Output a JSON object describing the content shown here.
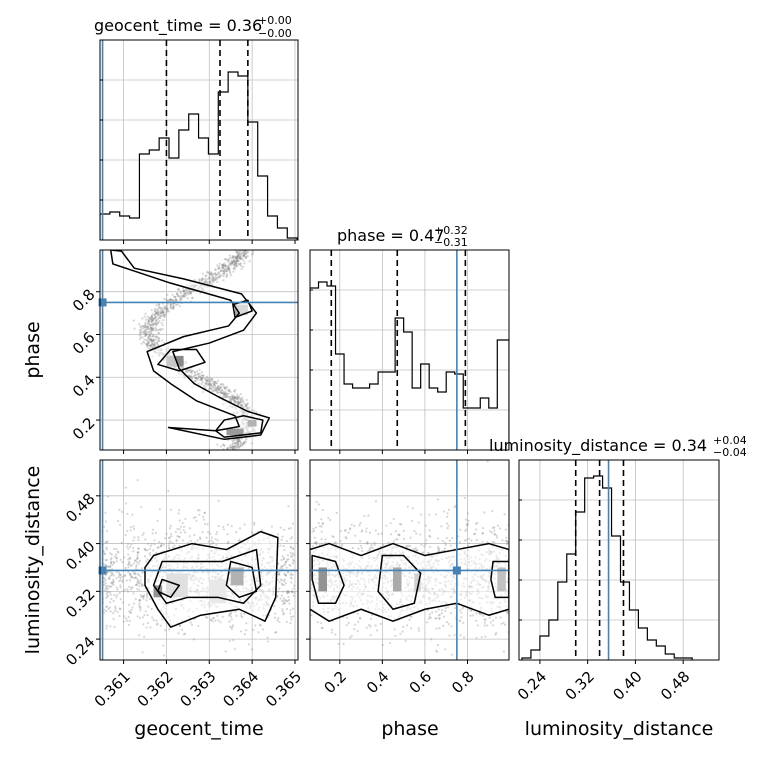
{
  "chart_data": {
    "type": "corner",
    "parameters": [
      "geocent_time",
      "phase",
      "luminosity_distance"
    ],
    "truth": {
      "geocent_time": 0.36051,
      "phase": 0.75,
      "luminosity_distance": 0.355
    },
    "colors": {
      "truth": "#4682b4",
      "hist": "#000000",
      "grid": "#c0c0c0",
      "samples": "#8a8a8a"
    },
    "titles": {
      "geocent_time": {
        "main": "geocent_time = 0.36",
        "plus": "+0.00",
        "minus": "−0.00"
      },
      "phase": {
        "main": "phase = 0.47",
        "plus": "+0.32",
        "minus": "−0.31"
      },
      "luminosity_distance": {
        "main": "luminosity_distance = 0.34",
        "plus": "+0.04",
        "minus": "−0.04"
      }
    },
    "ranges": {
      "geocent_time": [
        0.36045,
        0.36507
      ],
      "phase": [
        0.06,
        0.995
      ],
      "luminosity_distance": [
        0.205,
        0.54
      ]
    },
    "ticks": {
      "geocent_time": [
        {
          "v": 0.361,
          "label": "0.361"
        },
        {
          "v": 0.362,
          "label": "0.362"
        },
        {
          "v": 0.363,
          "label": "0.363"
        },
        {
          "v": 0.364,
          "label": "0.364"
        },
        {
          "v": 0.365,
          "label": "0.365"
        }
      ],
      "phase": [
        {
          "v": 0.2,
          "label": "0.2"
        },
        {
          "v": 0.4,
          "label": "0.4"
        },
        {
          "v": 0.6,
          "label": "0.6"
        },
        {
          "v": 0.8,
          "label": "0.8"
        }
      ],
      "luminosity_distance": [
        {
          "v": 0.24,
          "label": "0.24"
        },
        {
          "v": 0.32,
          "label": "0.32"
        },
        {
          "v": 0.4,
          "label": "0.40"
        },
        {
          "v": 0.48,
          "label": "0.48"
        }
      ]
    },
    "quantiles": {
      "geocent_time": [
        0.362,
        0.36325,
        0.3639
      ],
      "phase": [
        0.16,
        0.47,
        0.79
      ],
      "luminosity_distance": [
        0.3,
        0.34,
        0.38
      ]
    },
    "hist_geocent_time": {
      "edges": [
        0.36045,
        0.36068,
        0.36091,
        0.36114,
        0.36137,
        0.3616,
        0.36183,
        0.36206,
        0.36229,
        0.36252,
        0.36275,
        0.36298,
        0.36321,
        0.36344,
        0.36367,
        0.3639,
        0.36413,
        0.36436,
        0.36459,
        0.36482,
        0.36505
      ],
      "counts": [
        0.13,
        0.14,
        0.12,
        0.11,
        0.43,
        0.45,
        0.51,
        0.41,
        0.55,
        0.63,
        0.51,
        0.43,
        0.74,
        0.84,
        0.82,
        0.59,
        0.32,
        0.12,
        0.06,
        0.01
      ]
    },
    "hist_phase": {
      "edges": [
        0.06,
        0.1,
        0.14,
        0.18,
        0.22,
        0.26,
        0.3,
        0.34,
        0.38,
        0.42,
        0.46,
        0.5,
        0.54,
        0.58,
        0.62,
        0.66,
        0.7,
        0.74,
        0.78,
        0.82,
        0.86,
        0.9,
        0.94,
        0.995
      ],
      "counts": [
        0.81,
        0.84,
        0.82,
        0.48,
        0.33,
        0.31,
        0.31,
        0.33,
        0.39,
        0.39,
        0.66,
        0.59,
        0.31,
        0.43,
        0.31,
        0.29,
        0.39,
        0.38,
        0.21,
        0.21,
        0.26,
        0.21,
        0.55
      ]
    },
    "hist_luminosity_distance": {
      "edges": [
        0.21,
        0.225,
        0.24,
        0.255,
        0.27,
        0.285,
        0.3,
        0.315,
        0.33,
        0.345,
        0.36,
        0.375,
        0.39,
        0.405,
        0.42,
        0.435,
        0.45,
        0.465,
        0.48,
        0.495
      ],
      "counts": [
        0.01,
        0.05,
        0.12,
        0.2,
        0.39,
        0.53,
        0.74,
        0.91,
        0.92,
        0.86,
        0.62,
        0.39,
        0.25,
        0.16,
        0.1,
        0.07,
        0.03,
        0.01,
        0.01
      ]
    },
    "phase_vs_time_contours": [
      [
        [
          0.36205,
          0.165
        ],
        [
          0.36335,
          0.11
        ],
        [
          0.3642,
          0.13
        ],
        [
          0.3644,
          0.21
        ],
        [
          0.3639,
          0.24
        ],
        [
          0.3632,
          0.31
        ],
        [
          0.36265,
          0.37
        ],
        [
          0.3623,
          0.44
        ],
        [
          0.36215,
          0.52
        ],
        [
          0.363,
          0.56
        ],
        [
          0.3638,
          0.62
        ],
        [
          0.3641,
          0.7
        ],
        [
          0.36375,
          0.79
        ],
        [
          0.3624,
          0.86
        ],
        [
          0.36125,
          0.91
        ],
        [
          0.36095,
          0.99
        ],
        [
          0.3607,
          0.995
        ],
        [
          0.36075,
          0.93
        ],
        [
          0.3621,
          0.84
        ],
        [
          0.3635,
          0.76
        ],
        [
          0.3637,
          0.7
        ],
        [
          0.36345,
          0.64
        ],
        [
          0.3624,
          0.59
        ],
        [
          0.36155,
          0.52
        ],
        [
          0.3617,
          0.43
        ],
        [
          0.3621,
          0.37
        ],
        [
          0.3627,
          0.29
        ],
        [
          0.3636,
          0.22
        ],
        [
          0.3637,
          0.17
        ],
        [
          0.36315,
          0.15
        ],
        [
          0.36205,
          0.165
        ]
      ],
      [
        [
          0.36335,
          0.12
        ],
        [
          0.3642,
          0.14
        ],
        [
          0.36425,
          0.2
        ],
        [
          0.3638,
          0.22
        ],
        [
          0.36335,
          0.2
        ],
        [
          0.36315,
          0.15
        ],
        [
          0.36335,
          0.12
        ]
      ],
      [
        [
          0.3618,
          0.46
        ],
        [
          0.3623,
          0.43
        ],
        [
          0.3629,
          0.47
        ],
        [
          0.3627,
          0.53
        ],
        [
          0.3621,
          0.53
        ],
        [
          0.3618,
          0.46
        ]
      ],
      [
        [
          0.3636,
          0.68
        ],
        [
          0.364,
          0.71
        ],
        [
          0.3639,
          0.76
        ],
        [
          0.36355,
          0.74
        ],
        [
          0.3636,
          0.68
        ]
      ]
    ],
    "distance_vs_time_contours": [
      [
        [
          0.3617,
          0.38
        ],
        [
          0.3626,
          0.4
        ],
        [
          0.3634,
          0.39
        ],
        [
          0.3642,
          0.42
        ],
        [
          0.3646,
          0.41
        ],
        [
          0.36455,
          0.31
        ],
        [
          0.3643,
          0.27
        ],
        [
          0.3637,
          0.29
        ],
        [
          0.3628,
          0.28
        ],
        [
          0.3621,
          0.26
        ],
        [
          0.3618,
          0.29
        ],
        [
          0.3615,
          0.33
        ],
        [
          0.3615,
          0.36
        ],
        [
          0.3617,
          0.38
        ]
      ],
      [
        [
          0.3619,
          0.37
        ],
        [
          0.3625,
          0.37
        ],
        [
          0.3633,
          0.37
        ],
        [
          0.3641,
          0.39
        ],
        [
          0.3642,
          0.33
        ],
        [
          0.3638,
          0.3
        ],
        [
          0.3632,
          0.31
        ],
        [
          0.3625,
          0.31
        ],
        [
          0.362,
          0.3
        ],
        [
          0.3617,
          0.33
        ],
        [
          0.3619,
          0.37
        ]
      ],
      [
        [
          0.3619,
          0.34
        ],
        [
          0.3623,
          0.33
        ],
        [
          0.3621,
          0.31
        ],
        [
          0.3618,
          0.32
        ],
        [
          0.3619,
          0.34
        ]
      ],
      [
        [
          0.3635,
          0.37
        ],
        [
          0.364,
          0.36
        ],
        [
          0.3641,
          0.32
        ],
        [
          0.3637,
          0.31
        ],
        [
          0.3634,
          0.33
        ],
        [
          0.3635,
          0.37
        ]
      ]
    ],
    "distance_vs_phase_contours": [
      [
        [
          0.06,
          0.39
        ],
        [
          0.15,
          0.4
        ],
        [
          0.3,
          0.38
        ],
        [
          0.45,
          0.4
        ],
        [
          0.6,
          0.38
        ],
        [
          0.75,
          0.39
        ],
        [
          0.9,
          0.4
        ],
        [
          0.995,
          0.39
        ],
        [
          0.995,
          0.29
        ],
        [
          0.9,
          0.28
        ],
        [
          0.75,
          0.3
        ],
        [
          0.6,
          0.29
        ],
        [
          0.45,
          0.27
        ],
        [
          0.3,
          0.29
        ],
        [
          0.15,
          0.27
        ],
        [
          0.06,
          0.29
        ]
      ],
      [
        [
          0.07,
          0.38
        ],
        [
          0.18,
          0.37
        ],
        [
          0.22,
          0.33
        ],
        [
          0.18,
          0.3
        ],
        [
          0.1,
          0.3
        ],
        [
          0.07,
          0.34
        ],
        [
          0.07,
          0.38
        ]
      ],
      [
        [
          0.4,
          0.38
        ],
        [
          0.5,
          0.38
        ],
        [
          0.58,
          0.35
        ],
        [
          0.55,
          0.3
        ],
        [
          0.45,
          0.29
        ],
        [
          0.38,
          0.32
        ],
        [
          0.4,
          0.38
        ]
      ],
      [
        [
          0.92,
          0.37
        ],
        [
          0.995,
          0.37
        ],
        [
          0.995,
          0.31
        ],
        [
          0.93,
          0.31
        ],
        [
          0.91,
          0.34
        ],
        [
          0.92,
          0.37
        ]
      ]
    ]
  }
}
